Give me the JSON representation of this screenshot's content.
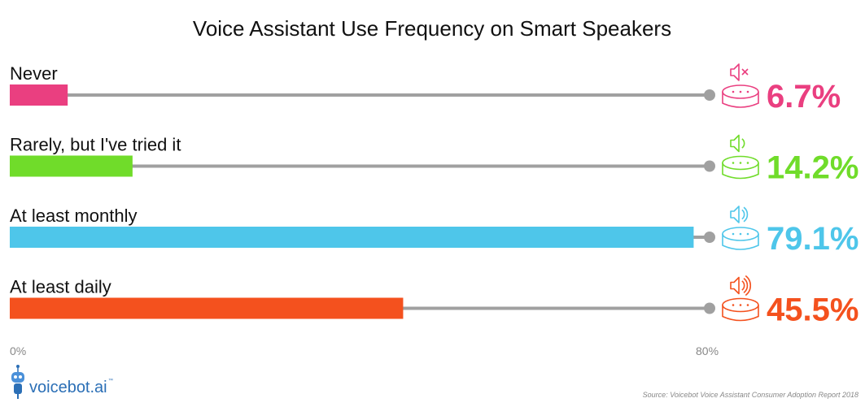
{
  "chart_data": {
    "type": "bar",
    "orientation": "horizontal",
    "title": "Voice Assistant Use Frequency on Smart Speakers",
    "categories": [
      "Never",
      "Rarely, but I've tried it",
      "At least monthly",
      "At least daily"
    ],
    "values": [
      6.7,
      14.2,
      79.1,
      45.5
    ],
    "value_labels": [
      "6.7%",
      "14.2%",
      "79.1%",
      "45.5%"
    ],
    "colors": [
      "#ea3f80",
      "#70dc2a",
      "#4ec6ea",
      "#f4511e"
    ],
    "track_color": "#a0a0a0",
    "icons": [
      "speaker-muted-icon",
      "speaker-low-icon",
      "speaker-medium-icon",
      "speaker-high-icon"
    ],
    "xlim": [
      0,
      80
    ],
    "tick_labels": [
      "0%",
      "80%"
    ],
    "grid": false,
    "legend": "none"
  },
  "footer": {
    "brand": "voicebot.ai",
    "brand_tm": "™",
    "source": "Source: Voicebot Voice Assistant Consumer Adoption Report 2018"
  }
}
